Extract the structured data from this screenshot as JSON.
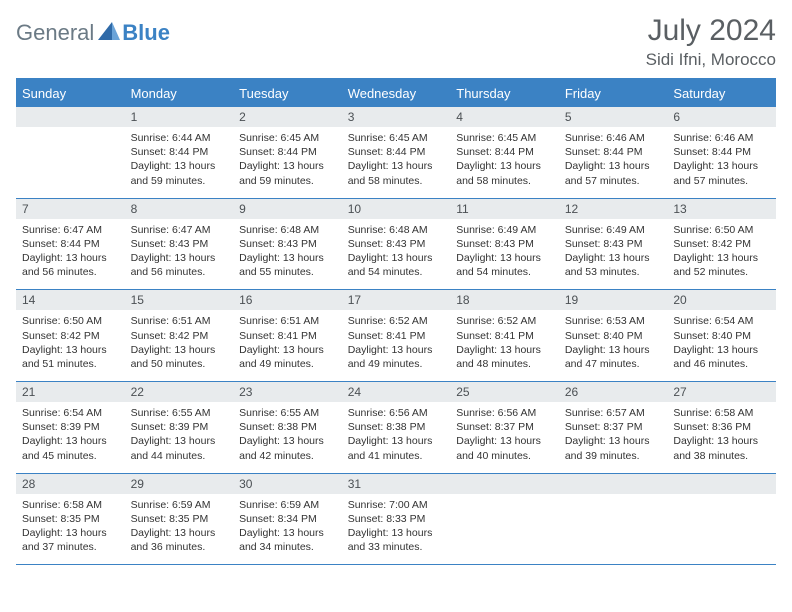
{
  "brand": {
    "word1": "General",
    "word2": "Blue"
  },
  "title": "July 2024",
  "location": "Sidi Ifni, Morocco",
  "colors": {
    "accent": "#3b82c4",
    "header_bg": "#3b82c4",
    "header_text": "#ffffff",
    "daynum_bg": "#e8ebed",
    "body_text": "#333333",
    "title_text": "#5a5f63"
  },
  "fonts": {
    "body_size": 10.5,
    "daynum_size": 12,
    "header_size": 13,
    "title_size": 30
  },
  "weekdays": [
    "Sunday",
    "Monday",
    "Tuesday",
    "Wednesday",
    "Thursday",
    "Friday",
    "Saturday"
  ],
  "weeks": [
    [
      {
        "day": null
      },
      {
        "day": 1,
        "sunrise": "6:44 AM",
        "sunset": "8:44 PM",
        "daylight": "13 hours and 59 minutes."
      },
      {
        "day": 2,
        "sunrise": "6:45 AM",
        "sunset": "8:44 PM",
        "daylight": "13 hours and 59 minutes."
      },
      {
        "day": 3,
        "sunrise": "6:45 AM",
        "sunset": "8:44 PM",
        "daylight": "13 hours and 58 minutes."
      },
      {
        "day": 4,
        "sunrise": "6:45 AM",
        "sunset": "8:44 PM",
        "daylight": "13 hours and 58 minutes."
      },
      {
        "day": 5,
        "sunrise": "6:46 AM",
        "sunset": "8:44 PM",
        "daylight": "13 hours and 57 minutes."
      },
      {
        "day": 6,
        "sunrise": "6:46 AM",
        "sunset": "8:44 PM",
        "daylight": "13 hours and 57 minutes."
      }
    ],
    [
      {
        "day": 7,
        "sunrise": "6:47 AM",
        "sunset": "8:44 PM",
        "daylight": "13 hours and 56 minutes."
      },
      {
        "day": 8,
        "sunrise": "6:47 AM",
        "sunset": "8:43 PM",
        "daylight": "13 hours and 56 minutes."
      },
      {
        "day": 9,
        "sunrise": "6:48 AM",
        "sunset": "8:43 PM",
        "daylight": "13 hours and 55 minutes."
      },
      {
        "day": 10,
        "sunrise": "6:48 AM",
        "sunset": "8:43 PM",
        "daylight": "13 hours and 54 minutes."
      },
      {
        "day": 11,
        "sunrise": "6:49 AM",
        "sunset": "8:43 PM",
        "daylight": "13 hours and 54 minutes."
      },
      {
        "day": 12,
        "sunrise": "6:49 AM",
        "sunset": "8:43 PM",
        "daylight": "13 hours and 53 minutes."
      },
      {
        "day": 13,
        "sunrise": "6:50 AM",
        "sunset": "8:42 PM",
        "daylight": "13 hours and 52 minutes."
      }
    ],
    [
      {
        "day": 14,
        "sunrise": "6:50 AM",
        "sunset": "8:42 PM",
        "daylight": "13 hours and 51 minutes."
      },
      {
        "day": 15,
        "sunrise": "6:51 AM",
        "sunset": "8:42 PM",
        "daylight": "13 hours and 50 minutes."
      },
      {
        "day": 16,
        "sunrise": "6:51 AM",
        "sunset": "8:41 PM",
        "daylight": "13 hours and 49 minutes."
      },
      {
        "day": 17,
        "sunrise": "6:52 AM",
        "sunset": "8:41 PM",
        "daylight": "13 hours and 49 minutes."
      },
      {
        "day": 18,
        "sunrise": "6:52 AM",
        "sunset": "8:41 PM",
        "daylight": "13 hours and 48 minutes."
      },
      {
        "day": 19,
        "sunrise": "6:53 AM",
        "sunset": "8:40 PM",
        "daylight": "13 hours and 47 minutes."
      },
      {
        "day": 20,
        "sunrise": "6:54 AM",
        "sunset": "8:40 PM",
        "daylight": "13 hours and 46 minutes."
      }
    ],
    [
      {
        "day": 21,
        "sunrise": "6:54 AM",
        "sunset": "8:39 PM",
        "daylight": "13 hours and 45 minutes."
      },
      {
        "day": 22,
        "sunrise": "6:55 AM",
        "sunset": "8:39 PM",
        "daylight": "13 hours and 44 minutes."
      },
      {
        "day": 23,
        "sunrise": "6:55 AM",
        "sunset": "8:38 PM",
        "daylight": "13 hours and 42 minutes."
      },
      {
        "day": 24,
        "sunrise": "6:56 AM",
        "sunset": "8:38 PM",
        "daylight": "13 hours and 41 minutes."
      },
      {
        "day": 25,
        "sunrise": "6:56 AM",
        "sunset": "8:37 PM",
        "daylight": "13 hours and 40 minutes."
      },
      {
        "day": 26,
        "sunrise": "6:57 AM",
        "sunset": "8:37 PM",
        "daylight": "13 hours and 39 minutes."
      },
      {
        "day": 27,
        "sunrise": "6:58 AM",
        "sunset": "8:36 PM",
        "daylight": "13 hours and 38 minutes."
      }
    ],
    [
      {
        "day": 28,
        "sunrise": "6:58 AM",
        "sunset": "8:35 PM",
        "daylight": "13 hours and 37 minutes."
      },
      {
        "day": 29,
        "sunrise": "6:59 AM",
        "sunset": "8:35 PM",
        "daylight": "13 hours and 36 minutes."
      },
      {
        "day": 30,
        "sunrise": "6:59 AM",
        "sunset": "8:34 PM",
        "daylight": "13 hours and 34 minutes."
      },
      {
        "day": 31,
        "sunrise": "7:00 AM",
        "sunset": "8:33 PM",
        "daylight": "13 hours and 33 minutes."
      },
      {
        "day": null
      },
      {
        "day": null
      },
      {
        "day": null
      }
    ]
  ]
}
